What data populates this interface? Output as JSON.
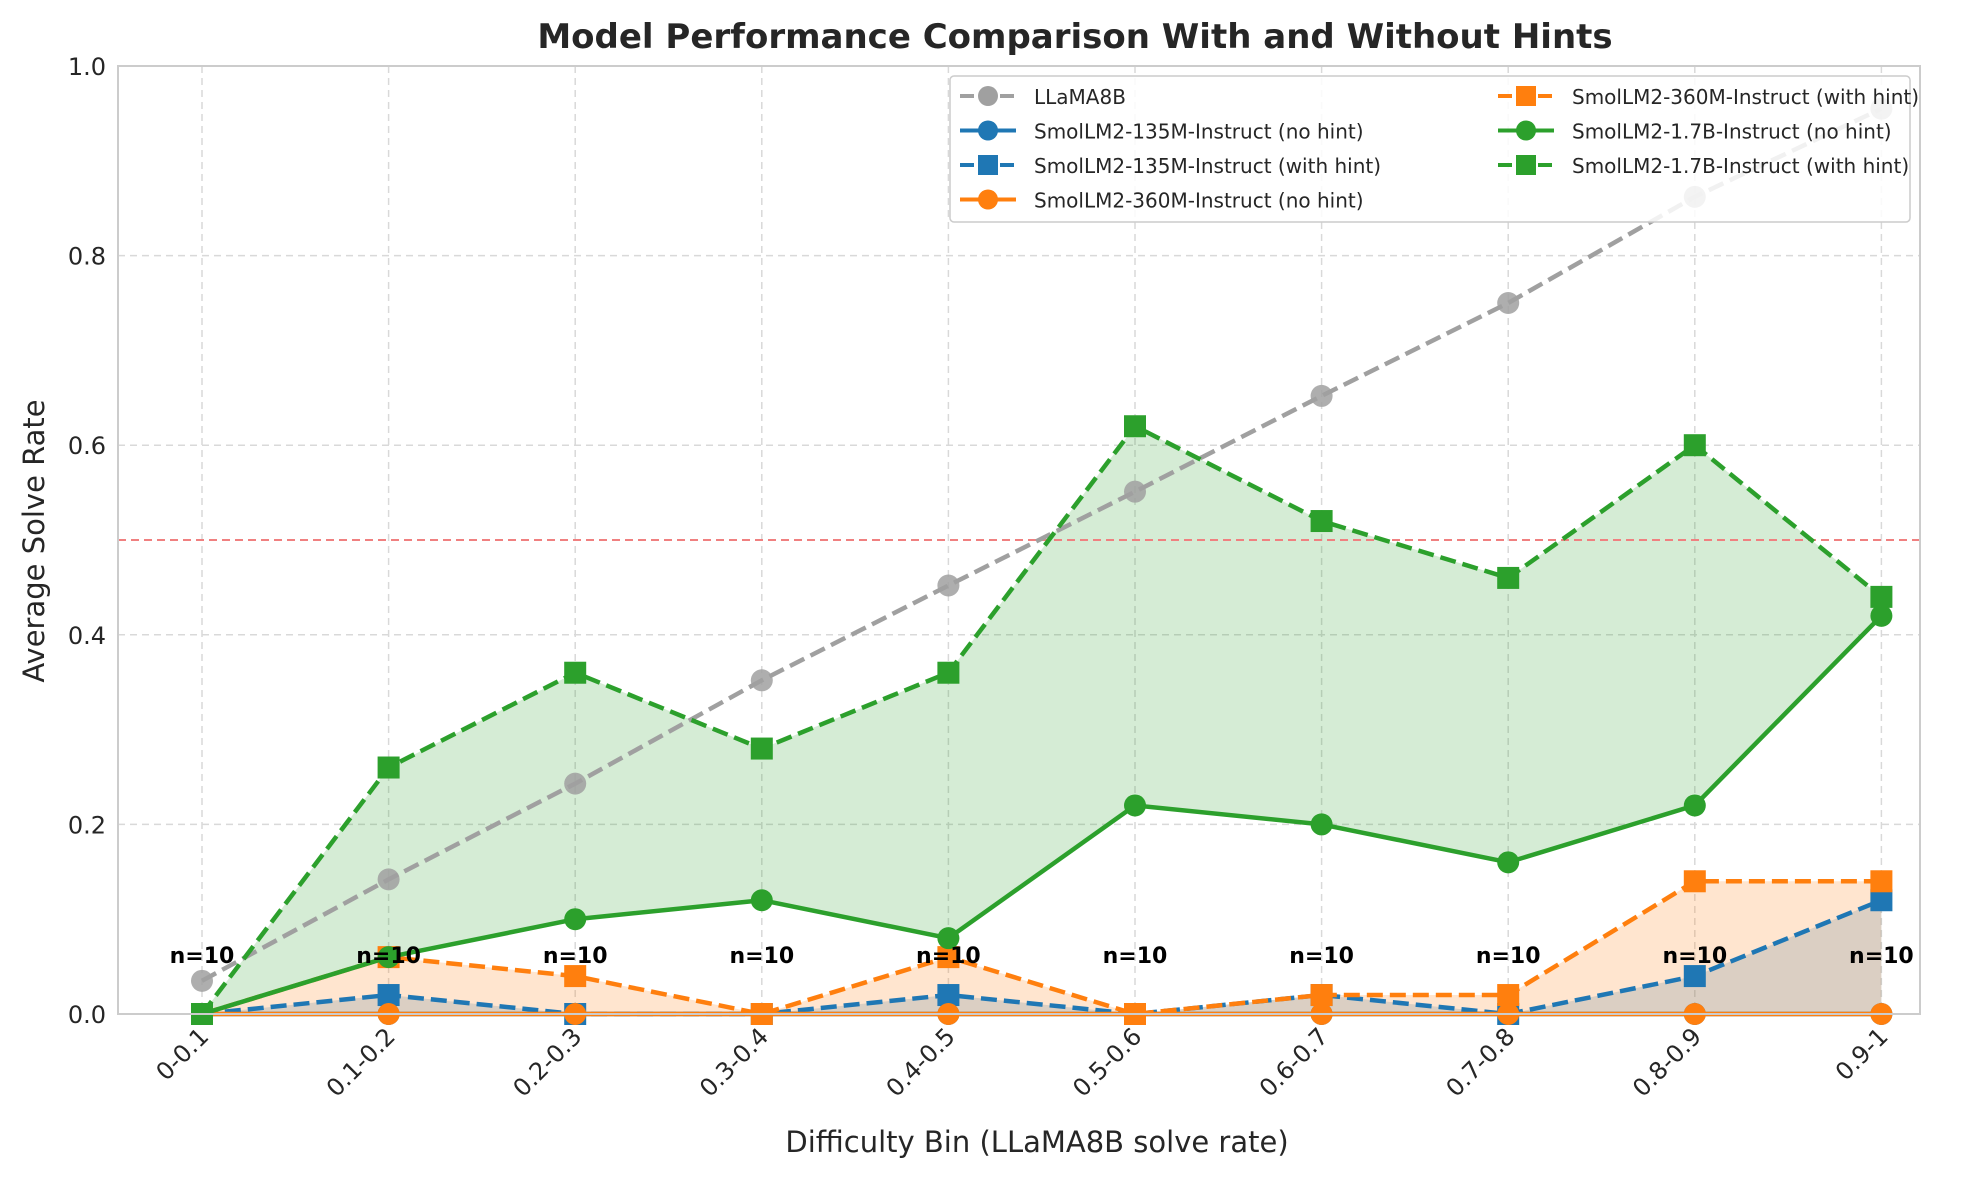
{
  "chart_data": {
    "type": "line",
    "title": "Model Performance Comparison With and Without Hints",
    "xlabel": "Difficulty Bin (LLaMA8B solve rate)",
    "ylabel": "Average Solve Rate",
    "ylim": [
      0,
      1.0
    ],
    "yticks": [
      "0.0",
      "0.2",
      "0.4",
      "0.6",
      "0.8",
      "1.0"
    ],
    "grid": true,
    "legend_position": "top-right",
    "categories": [
      "0-0.1",
      "0.1-0.2",
      "0.2-0.3",
      "0.3-0.4",
      "0.4-0.5",
      "0.5-0.6",
      "0.6-0.7",
      "0.7-0.8",
      "0.8-0.9",
      "0.9-1"
    ],
    "sample_counts": [
      "n=10",
      "n=10",
      "n=10",
      "n=10",
      "n=10",
      "n=10",
      "n=10",
      "n=10",
      "n=10",
      "n=10"
    ],
    "reference_line": {
      "y": 0.5,
      "color": "#f08080"
    },
    "series": [
      {
        "name": "LLaMA8B",
        "color": "#a0a0a0",
        "dash": "dashed",
        "marker": "circle",
        "values": [
          0.035,
          0.142,
          0.243,
          0.352,
          0.452,
          0.551,
          0.652,
          0.75,
          0.862,
          0.955
        ]
      },
      {
        "name": "SmolLM2-135M-Instruct (no hint)",
        "color": "#1f77b4",
        "dash": "solid",
        "marker": "circle",
        "values": [
          0,
          0,
          0,
          0,
          0,
          0,
          0,
          0,
          0,
          0
        ]
      },
      {
        "name": "SmolLM2-135M-Instruct (with hint)",
        "color": "#1f77b4",
        "dash": "dashed",
        "marker": "square",
        "values": [
          0,
          0.02,
          0,
          0,
          0.02,
          0,
          0.02,
          0,
          0.04,
          0.12
        ]
      },
      {
        "name": "SmolLM2-360M-Instruct (no hint)",
        "color": "#ff7f0e",
        "dash": "solid",
        "marker": "circle",
        "values": [
          0,
          0,
          0,
          0,
          0,
          0,
          0,
          0,
          0,
          0
        ]
      },
      {
        "name": "SmolLM2-360M-Instruct (with hint)",
        "color": "#ff7f0e",
        "dash": "dashed",
        "marker": "square",
        "values": [
          0,
          0.06,
          0.04,
          0,
          0.06,
          0,
          0.02,
          0.02,
          0.14,
          0.14
        ]
      },
      {
        "name": "SmolLM2-1.7B-Instruct (no hint)",
        "color": "#2ca02c",
        "dash": "solid",
        "marker": "circle",
        "values": [
          0,
          0.06,
          0.1,
          0.12,
          0.08,
          0.22,
          0.2,
          0.16,
          0.22,
          0.42
        ]
      },
      {
        "name": "SmolLM2-1.7B-Instruct (with hint)",
        "color": "#2ca02c",
        "dash": "dashed",
        "marker": "square",
        "values": [
          0,
          0.26,
          0.36,
          0.28,
          0.36,
          0.62,
          0.52,
          0.46,
          0.6,
          0.44
        ]
      }
    ],
    "fills": [
      {
        "between": [
          "SmolLM2-135M-Instruct (no hint)",
          "SmolLM2-135M-Instruct (with hint)"
        ],
        "color": "#1f77b4",
        "opacity": 0.2
      },
      {
        "between": [
          "SmolLM2-360M-Instruct (no hint)",
          "SmolLM2-360M-Instruct (with hint)"
        ],
        "color": "#ff7f0e",
        "opacity": 0.2
      },
      {
        "between": [
          "SmolLM2-1.7B-Instruct (no hint)",
          "SmolLM2-1.7B-Instruct (with hint)"
        ],
        "color": "#2ca02c",
        "opacity": 0.2
      }
    ]
  }
}
